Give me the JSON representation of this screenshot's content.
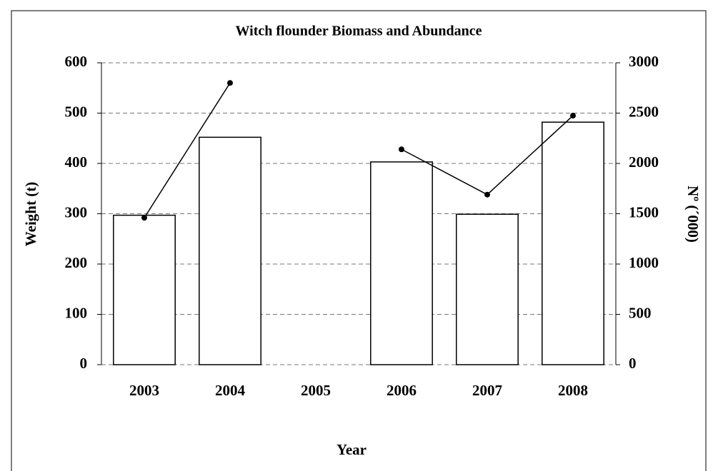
{
  "chart_data": {
    "type": "bar",
    "title": "Witch flounder Biomass and Abundance",
    "x_label": "Year",
    "y_label": "Weight (t)",
    "y2_label": "Nº (´000)",
    "categories": [
      "2003",
      "2004",
      "2005",
      "2006",
      "2007",
      "2008"
    ],
    "series": [
      {
        "type": "bar",
        "color": "#ffffff",
        "values": [
          297,
          452,
          null,
          403,
          299,
          482
        ]
      },
      {
        "type": "line",
        "axis": "y2",
        "color": "#000000",
        "values": [
          1460,
          2800,
          null,
          2140,
          1690,
          2475
        ]
      }
    ],
    "ylim": [
      0,
      600
    ],
    "yticks": [
      0,
      100,
      200,
      300,
      400,
      500,
      600
    ],
    "y2lim": [
      0,
      3000
    ],
    "y2ticks": [
      0,
      500,
      1000,
      1500,
      2000,
      2500,
      3000
    ],
    "grid": true
  }
}
